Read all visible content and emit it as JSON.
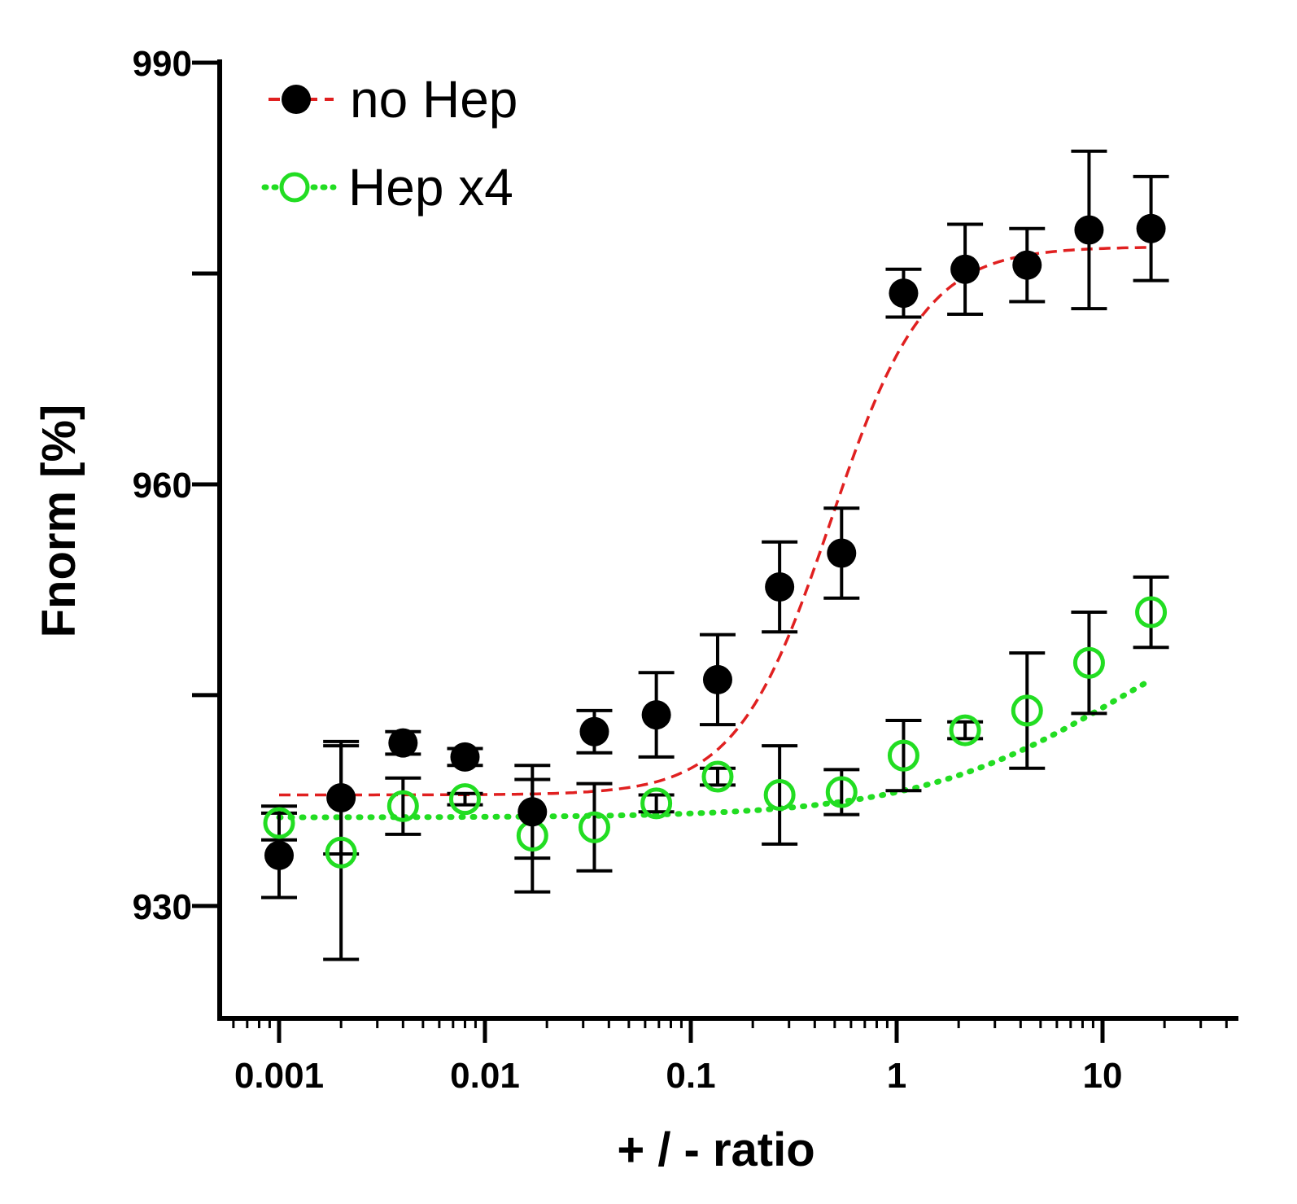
{
  "chart_data": {
    "type": "scatter",
    "title": "",
    "xlabel": "+ / - ratio",
    "ylabel": "Fnorm [%]",
    "xscale": "log",
    "xlim": [
      0.0005,
      50
    ],
    "ylim": [
      922,
      990
    ],
    "x_ticks": [
      0.001,
      0.01,
      0.1,
      1,
      10
    ],
    "x_tick_labels": [
      "0.001",
      "0.01",
      "0.1",
      "1",
      "10"
    ],
    "y_ticks": [
      930,
      945,
      960,
      975,
      990
    ],
    "y_tick_labels": [
      "930",
      "",
      "960",
      "",
      "990"
    ],
    "legend_position": "top-left",
    "series": [
      {
        "name": "no Hep",
        "marker": "filled-circle",
        "marker_color": "#000000",
        "line_color": "#e02020",
        "line_style": "dashed",
        "x": [
          0.001,
          0.002,
          0.004,
          0.008,
          0.017,
          0.034,
          0.068,
          0.135,
          0.27,
          0.54,
          1.08,
          2.15,
          4.3,
          8.6,
          17.2
        ],
        "y": [
          933.6,
          937.7,
          941.6,
          940.6,
          936.7,
          942.4,
          943.6,
          946.1,
          952.7,
          955.1,
          973.6,
          975.3,
          975.6,
          978.1,
          978.2
        ],
        "err": [
          3.0,
          4.0,
          0.8,
          0.6,
          3.3,
          1.5,
          3.0,
          3.2,
          3.2,
          3.2,
          1.7,
          3.2,
          2.6,
          5.6,
          3.7
        ],
        "fit": {
          "bottom": 937.9,
          "top": 976.9,
          "log_ec50": -0.32,
          "hill": 1.9
        }
      },
      {
        "name": "Hep x4",
        "marker": "open-circle",
        "marker_color": "#22dd22",
        "line_color": "#22dd22",
        "line_style": "dotted",
        "x": [
          0.001,
          0.002,
          0.004,
          0.008,
          0.017,
          0.034,
          0.068,
          0.135,
          0.27,
          0.54,
          1.08,
          2.15,
          4.3,
          8.6,
          17.2
        ],
        "y": [
          935.9,
          933.8,
          937.1,
          937.6,
          935.0,
          935.6,
          937.3,
          939.2,
          937.9,
          938.1,
          940.7,
          942.5,
          943.9,
          947.3,
          950.9
        ],
        "err": [
          1.2,
          7.6,
          2.0,
          0.4,
          4.0,
          3.1,
          0.6,
          0.6,
          3.5,
          1.6,
          2.5,
          0.6,
          4.1,
          3.6,
          2.5
        ],
        "fit": {
          "bottom": 936.3,
          "top": 953.6,
          "log_ec50": 1.1,
          "hill": 0.85
        }
      }
    ]
  }
}
